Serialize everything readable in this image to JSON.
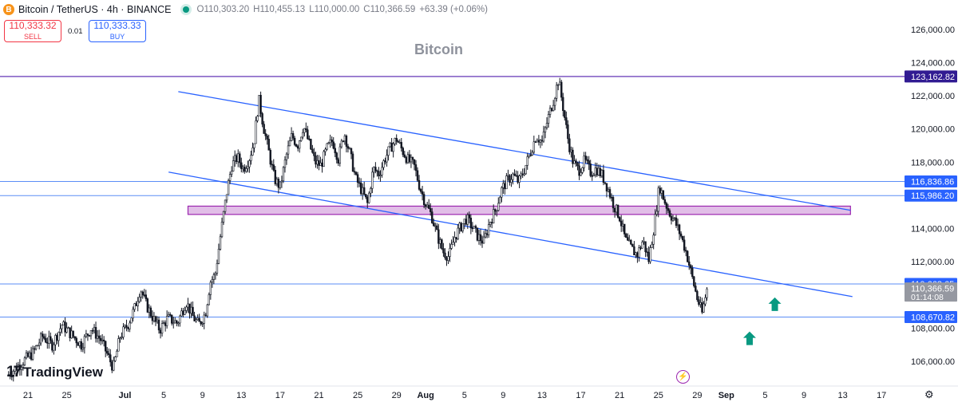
{
  "header": {
    "pair": "Bitcoin / TetherUS · 4h · BINANCE",
    "coin_glyph": "B",
    "ohlc": [
      {
        "label": "O",
        "value": "110,303.20"
      },
      {
        "label": "H",
        "value": "110,455.13"
      },
      {
        "label": "L",
        "value": "110,000.00"
      },
      {
        "label": "C",
        "value": "110,366.59"
      }
    ],
    "change": "+63.39 (+0.06%)"
  },
  "trade": {
    "sell_price": "110,333.32",
    "sell_label": "SELL",
    "spread": "0.01",
    "buy_price": "110,333.33",
    "buy_label": "BUY"
  },
  "watermark": "Bitcoin",
  "logo": {
    "mark": "17",
    "text": "TradingView"
  },
  "icons": {
    "gear": "⚙",
    "bolt": "⚡"
  },
  "colors": {
    "up": "#ffffff",
    "down": "#131722",
    "trendline": "#2962ff",
    "hline": "#5b8df6",
    "resistance_line": "#7e57c2",
    "zone_fill": "#e1bee7",
    "zone_border": "#9c27b0",
    "arrow": "#089981"
  },
  "chart_data": {
    "type": "candlestick",
    "interval": "4h",
    "ylim": [
      104800,
      127000
    ],
    "y_ticks": [
      "106,000.00",
      "108,000.00",
      "110,000.00",
      "112,000.00",
      "114,000.00",
      "116,000.00",
      "118,000.00",
      "120,000.00",
      "122,000.00",
      "124,000.00",
      "126,000.00"
    ],
    "x_ticks": [
      "21",
      "25",
      "Jul",
      "5",
      "9",
      "13",
      "17",
      "21",
      "25",
      "29",
      "Aug",
      "5",
      "9",
      "13",
      "17",
      "21",
      "25",
      "29",
      "Sep",
      "5",
      "9",
      "13",
      "17"
    ],
    "x_tick_days": [
      -10,
      -6,
      0,
      4,
      8,
      12,
      16,
      20,
      24,
      28,
      31,
      35,
      39,
      43,
      47,
      51,
      55,
      59,
      62,
      66,
      70,
      74,
      78
    ],
    "price_labels": [
      {
        "text": "123,162.82",
        "price": 123162.82,
        "style": "resistance"
      },
      {
        "text": "116,836.86",
        "price": 116836.86,
        "style": "line"
      },
      {
        "text": "115,986.20",
        "price": 115986.2,
        "style": "line"
      },
      {
        "text": "110,663.65",
        "price": 110663.65,
        "style": "line"
      },
      {
        "text": "110,366.59",
        "price": 110366.59,
        "style": "current",
        "sub": "01:14:08"
      },
      {
        "text": "108,670.82",
        "price": 108670.82,
        "style": "line"
      }
    ],
    "hlines": [
      123162.82,
      116836.86,
      115986.2,
      110663.65,
      108670.82
    ],
    "zone": {
      "day_start": 6.5,
      "day_end": 74.8,
      "top": 115350,
      "bottom": 114850
    },
    "trendlines": [
      {
        "p1": [
          5.5,
          122250
        ],
        "p2": [
          74.8,
          115100
        ]
      },
      {
        "p1": [
          4.5,
          117400
        ],
        "p2": [
          75.0,
          109900
        ]
      }
    ],
    "arrows": [
      {
        "day": 67.0,
        "price": 109850
      },
      {
        "day": 64.4,
        "price": 107800
      }
    ],
    "closes": [
      [
        -12.0,
        105200
      ],
      [
        -10.5,
        106000
      ],
      [
        -9.5,
        106500
      ],
      [
        -8.5,
        107500
      ],
      [
        -7.5,
        107000
      ],
      [
        -6.5,
        108200
      ],
      [
        -5.5,
        107600
      ],
      [
        -4.5,
        107000
      ],
      [
        -3.5,
        108000
      ],
      [
        -2.5,
        107300
      ],
      [
        -1.8,
        106400
      ],
      [
        -1.2,
        105600
      ],
      [
        -0.5,
        107500
      ],
      [
        0.3,
        108200
      ],
      [
        1.0,
        109200
      ],
      [
        1.6,
        110400
      ],
      [
        2.2,
        109400
      ],
      [
        3.0,
        108500
      ],
      [
        3.6,
        107900
      ],
      [
        4.4,
        108600
      ],
      [
        5.4,
        108300
      ],
      [
        6.3,
        109600
      ],
      [
        7.0,
        108700
      ],
      [
        7.6,
        108200
      ],
      [
        8.3,
        108900
      ],
      [
        8.8,
        110800
      ],
      [
        9.3,
        111200
      ],
      [
        9.9,
        113800
      ],
      [
        10.5,
        116200
      ],
      [
        11.0,
        117800
      ],
      [
        11.6,
        118300
      ],
      [
        12.2,
        117600
      ],
      [
        12.8,
        118200
      ],
      [
        13.3,
        119200
      ],
      [
        13.8,
        121800
      ],
      [
        14.3,
        120100
      ],
      [
        14.8,
        118700
      ],
      [
        15.4,
        117000
      ],
      [
        16.0,
        116500
      ],
      [
        16.6,
        118300
      ],
      [
        17.2,
        119600
      ],
      [
        17.8,
        119000
      ],
      [
        18.4,
        120200
      ],
      [
        19.0,
        119100
      ],
      [
        19.6,
        118000
      ],
      [
        20.2,
        117800
      ],
      [
        20.8,
        118800
      ],
      [
        21.4,
        119300
      ],
      [
        22.0,
        118200
      ],
      [
        22.6,
        119800
      ],
      [
        23.2,
        118500
      ],
      [
        23.8,
        117000
      ],
      [
        24.4,
        116300
      ],
      [
        25.0,
        115500
      ],
      [
        25.6,
        117600
      ],
      [
        26.2,
        117300
      ],
      [
        26.8,
        118200
      ],
      [
        27.4,
        118900
      ],
      [
        28.0,
        119400
      ],
      [
        28.6,
        118700
      ],
      [
        29.2,
        118100
      ],
      [
        29.8,
        117800
      ],
      [
        30.4,
        116500
      ],
      [
        31.0,
        115500
      ],
      [
        31.6,
        114800
      ],
      [
        32.2,
        113600
      ],
      [
        32.8,
        112600
      ],
      [
        33.4,
        112300
      ],
      [
        34.0,
        113500
      ],
      [
        34.6,
        114100
      ],
      [
        35.2,
        114600
      ],
      [
        35.8,
        114100
      ],
      [
        36.4,
        113500
      ],
      [
        37.0,
        113200
      ],
      [
        37.6,
        114400
      ],
      [
        38.2,
        115100
      ],
      [
        38.8,
        116300
      ],
      [
        39.4,
        116900
      ],
      [
        40.0,
        117200
      ],
      [
        40.6,
        116800
      ],
      [
        41.2,
        117600
      ],
      [
        41.8,
        118600
      ],
      [
        42.4,
        119600
      ],
      [
        43.0,
        119200
      ],
      [
        43.6,
        120600
      ],
      [
        44.2,
        121800
      ],
      [
        44.7,
        123000
      ],
      [
        45.2,
        121200
      ],
      [
        45.7,
        119300
      ],
      [
        46.2,
        118000
      ],
      [
        46.8,
        117500
      ],
      [
        47.4,
        118100
      ],
      [
        48.0,
        117400
      ],
      [
        48.6,
        117600
      ],
      [
        49.2,
        117200
      ],
      [
        49.8,
        116400
      ],
      [
        50.4,
        115400
      ],
      [
        51.0,
        114700
      ],
      [
        51.6,
        113300
      ],
      [
        52.2,
        112800
      ],
      [
        52.8,
        112400
      ],
      [
        53.4,
        113300
      ],
      [
        54.0,
        112100
      ],
      [
        54.6,
        114300
      ],
      [
        55.1,
        116600
      ],
      [
        55.6,
        115700
      ],
      [
        56.1,
        115000
      ],
      [
        56.7,
        114400
      ],
      [
        57.3,
        113600
      ],
      [
        57.9,
        112500
      ],
      [
        58.5,
        111000
      ],
      [
        59.0,
        109800
      ],
      [
        59.5,
        108900
      ],
      [
        60.0,
        110366.59
      ]
    ]
  }
}
